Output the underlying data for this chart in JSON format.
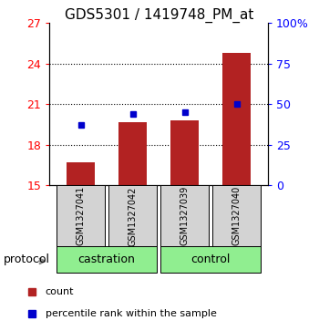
{
  "title": "GDS5301 / 1419748_PM_at",
  "samples": [
    "GSM1327041",
    "GSM1327042",
    "GSM1327039",
    "GSM1327040"
  ],
  "bar_values": [
    16.7,
    19.7,
    19.8,
    24.8
  ],
  "bar_bottom": 15.0,
  "percentile_values": [
    19.5,
    20.3,
    20.4,
    21.0
  ],
  "bar_color": "#b22222",
  "dot_color": "#0000cc",
  "left_ylim": [
    15,
    27
  ],
  "right_ylim": [
    0,
    100
  ],
  "left_yticks": [
    15,
    18,
    21,
    24,
    27
  ],
  "right_yticks": [
    0,
    25,
    50,
    75,
    100
  ],
  "right_yticklabels": [
    "0",
    "25",
    "50",
    "75",
    "100%"
  ],
  "groups": [
    {
      "label": "castration",
      "indices": [
        0,
        1
      ],
      "color": "#90ee90"
    },
    {
      "label": "control",
      "indices": [
        2,
        3
      ],
      "color": "#90ee90"
    }
  ],
  "protocol_label": "protocol",
  "legend_count_label": "count",
  "legend_pct_label": "percentile rank within the sample",
  "bar_width": 0.55,
  "sample_box_color": "#d3d3d3",
  "title_fontsize": 11,
  "tick_fontsize": 9,
  "sample_fontsize": 7,
  "group_fontsize": 9,
  "legend_fontsize": 8,
  "protocol_fontsize": 9
}
